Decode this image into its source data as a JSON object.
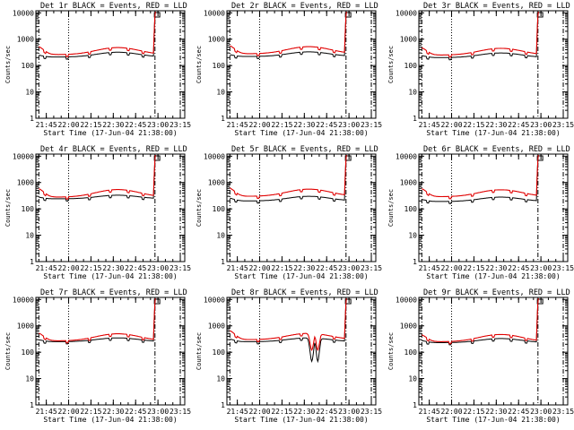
{
  "chart_data": [
    {
      "type": "line",
      "title": "Det 1r BLACK = Events, RED = LLD",
      "xlabel": "Start Time (17-Jun-04 21:38:00)",
      "ylabel": "Counts/sec",
      "x_tick_labels": [
        "21:45",
        "22:00",
        "22:15",
        "22:30",
        "22:45",
        "23:00",
        "23:15"
      ],
      "y_tick_labels": [
        "1",
        "10",
        "100",
        "1000",
        "10000"
      ],
      "ylim": [
        1,
        12000
      ],
      "xlim_minutes_from_start": [
        0,
        100
      ],
      "series": [
        {
          "name": "Events",
          "color": "#000000",
          "base_start": 250,
          "base_mid": 210,
          "base_peak": 320
        },
        {
          "name": "LLD",
          "color": "#e00000",
          "base_start": 550,
          "base_mid": 260,
          "base_peak": 480
        }
      ],
      "markers": {
        "dotted_line_minute": 22,
        "dashdot_lines_minute": [
          2,
          80,
          97
        ],
        "rise_minute": 79
      }
    },
    {
      "type": "line",
      "title": "Det 2r BLACK = Events, RED = LLD",
      "xlabel": "Start Time (17-Jun-04 21:38:00)",
      "ylabel": "Counts/sec",
      "x_tick_labels": [
        "21:45",
        "22:00",
        "22:15",
        "22:30",
        "22:45",
        "23:00",
        "23:15"
      ],
      "y_tick_labels": [
        "1",
        "10",
        "100",
        "1000",
        "10000"
      ],
      "ylim": [
        1,
        12000
      ],
      "xlim_minutes_from_start": [
        0,
        100
      ],
      "series": [
        {
          "name": "Events",
          "color": "#000000",
          "base_start": 260,
          "base_mid": 220,
          "base_peak": 330
        },
        {
          "name": "LLD",
          "color": "#e00000",
          "base_start": 600,
          "base_mid": 280,
          "base_peak": 520
        }
      ],
      "markers": {
        "dotted_line_minute": 22,
        "dashdot_lines_minute": [
          2,
          80,
          97
        ],
        "rise_minute": 79
      }
    },
    {
      "type": "line",
      "title": "Det 3r BLACK = Events, RED = LLD",
      "xlabel": "Start Time (17-Jun-04 21:38:00)",
      "ylabel": "Counts/sec",
      "x_tick_labels": [
        "21:45",
        "22:00",
        "22:15",
        "22:30",
        "22:45",
        "23:00",
        "23:15"
      ],
      "y_tick_labels": [
        "1",
        "10",
        "100",
        "1000",
        "10000"
      ],
      "ylim": [
        1,
        12000
      ],
      "xlim_minutes_from_start": [
        0,
        100
      ],
      "series": [
        {
          "name": "Events",
          "color": "#000000",
          "base_start": 240,
          "base_mid": 200,
          "base_peak": 300
        },
        {
          "name": "LLD",
          "color": "#e00000",
          "base_start": 500,
          "base_mid": 250,
          "base_peak": 450
        }
      ],
      "markers": {
        "dotted_line_minute": 22,
        "dashdot_lines_minute": [
          2,
          80,
          97
        ],
        "rise_minute": 79
      }
    },
    {
      "type": "line",
      "title": "Det 4r BLACK = Events, RED = LLD",
      "xlabel": "Start Time (17-Jun-04 21:38:00)",
      "ylabel": "Counts/sec",
      "x_tick_labels": [
        "21:45",
        "22:00",
        "22:15",
        "22:30",
        "22:45",
        "23:00",
        "23:15"
      ],
      "y_tick_labels": [
        "1",
        "10",
        "100",
        "1000",
        "10000"
      ],
      "ylim": [
        1,
        12000
      ],
      "xlim_minutes_from_start": [
        0,
        100
      ],
      "series": [
        {
          "name": "Events",
          "color": "#000000",
          "base_start": 280,
          "base_mid": 240,
          "base_peak": 330
        },
        {
          "name": "LLD",
          "color": "#e00000",
          "base_start": 620,
          "base_mid": 280,
          "base_peak": 540
        }
      ],
      "markers": {
        "dotted_line_minute": 22,
        "dashdot_lines_minute": [
          2,
          80,
          97
        ],
        "rise_minute": 79
      }
    },
    {
      "type": "line",
      "title": "Det 5r BLACK = Events, RED = LLD",
      "xlabel": "Start Time (17-Jun-04 21:38:00)",
      "ylabel": "Counts/sec",
      "x_tick_labels": [
        "21:45",
        "22:00",
        "22:15",
        "22:30",
        "22:45",
        "23:00",
        "23:15"
      ],
      "y_tick_labels": [
        "1",
        "10",
        "100",
        "1000",
        "10000"
      ],
      "ylim": [
        1,
        12000
      ],
      "xlim_minutes_from_start": [
        0,
        100
      ],
      "series": [
        {
          "name": "Events",
          "color": "#000000",
          "base_start": 260,
          "base_mid": 200,
          "base_peak": 300
        },
        {
          "name": "LLD",
          "color": "#e00000",
          "base_start": 650,
          "base_mid": 300,
          "base_peak": 560
        }
      ],
      "markers": {
        "dotted_line_minute": 22,
        "dashdot_lines_minute": [
          2,
          80,
          97
        ],
        "rise_minute": 79
      }
    },
    {
      "type": "line",
      "title": "Det 6r BLACK = Events, RED = LLD",
      "xlabel": "Start Time (17-Jun-04 21:38:00)",
      "ylabel": "Counts/sec",
      "x_tick_labels": [
        "21:45",
        "22:00",
        "22:15",
        "22:30",
        "22:45",
        "23:00",
        "23:15"
      ],
      "y_tick_labels": [
        "1",
        "10",
        "100",
        "1000",
        "10000"
      ],
      "ylim": [
        1,
        12000
      ],
      "xlim_minutes_from_start": [
        0,
        100
      ],
      "series": [
        {
          "name": "Events",
          "color": "#000000",
          "base_start": 230,
          "base_mid": 190,
          "base_peak": 280
        },
        {
          "name": "LLD",
          "color": "#e00000",
          "base_start": 620,
          "base_mid": 290,
          "base_peak": 530
        }
      ],
      "markers": {
        "dotted_line_minute": 22,
        "dashdot_lines_minute": [
          2,
          80,
          97
        ],
        "rise_minute": 79
      }
    },
    {
      "type": "line",
      "title": "Det 7r BLACK = Events, RED = LLD",
      "xlabel": "Start Time (17-Jun-04 21:38:00)",
      "ylabel": "Counts/sec",
      "x_tick_labels": [
        "21:45",
        "22:00",
        "22:15",
        "22:30",
        "22:45",
        "23:00",
        "23:15"
      ],
      "y_tick_labels": [
        "1",
        "10",
        "100",
        "1000",
        "10000"
      ],
      "ylim": [
        1,
        12000
      ],
      "xlim_minutes_from_start": [
        0,
        100
      ],
      "series": [
        {
          "name": "Events",
          "color": "#000000",
          "base_start": 300,
          "base_mid": 250,
          "base_peak": 350
        },
        {
          "name": "LLD",
          "color": "#e00000",
          "base_start": 560,
          "base_mid": 270,
          "base_peak": 500
        }
      ],
      "markers": {
        "dotted_line_minute": 22,
        "dashdot_lines_minute": [
          2,
          80,
          97
        ],
        "rise_minute": 79
      }
    },
    {
      "type": "line",
      "title": "Det 8r BLACK = Events, RED = LLD",
      "xlabel": "Start Time (17-Jun-04 21:38:00)",
      "ylabel": "Counts/sec",
      "x_tick_labels": [
        "21:45",
        "22:00",
        "22:15",
        "22:30",
        "22:45",
        "23:00",
        "23:15"
      ],
      "y_tick_labels": [
        "1",
        "10",
        "100",
        "1000",
        "10000"
      ],
      "ylim": [
        1,
        12000
      ],
      "xlim_minutes_from_start": [
        0,
        100
      ],
      "series": [
        {
          "name": "Events",
          "color": "#000000",
          "base_start": 320,
          "base_mid": 250,
          "base_peak": 350,
          "dip_minute": 57,
          "dip_min_value": 45
        },
        {
          "name": "LLD",
          "color": "#e00000",
          "base_start": 700,
          "base_mid": 300,
          "base_peak": 520,
          "dip_minute": 57,
          "dip_min_value": 120
        }
      ],
      "markers": {
        "dotted_line_minute": 22,
        "dashdot_lines_minute": [
          2,
          80,
          97
        ],
        "rise_minute": 79
      }
    },
    {
      "type": "line",
      "title": "Det 9r BLACK = Events, RED = LLD",
      "xlabel": "Start Time (17-Jun-04 21:38:00)",
      "ylabel": "Counts/sec",
      "x_tick_labels": [
        "21:45",
        "22:00",
        "22:15",
        "22:30",
        "22:45",
        "23:00",
        "23:15"
      ],
      "y_tick_labels": [
        "1",
        "10",
        "100",
        "1000",
        "10000"
      ],
      "ylim": [
        1,
        12000
      ],
      "xlim_minutes_from_start": [
        0,
        100
      ],
      "series": [
        {
          "name": "Events",
          "color": "#000000",
          "base_start": 280,
          "base_mid": 230,
          "base_peak": 330
        },
        {
          "name": "LLD",
          "color": "#e00000",
          "base_start": 480,
          "base_mid": 250,
          "base_peak": 470
        }
      ],
      "markers": {
        "dotted_line_minute": 22,
        "dashdot_lines_minute": [
          2,
          80,
          97
        ],
        "rise_minute": 79
      }
    }
  ]
}
